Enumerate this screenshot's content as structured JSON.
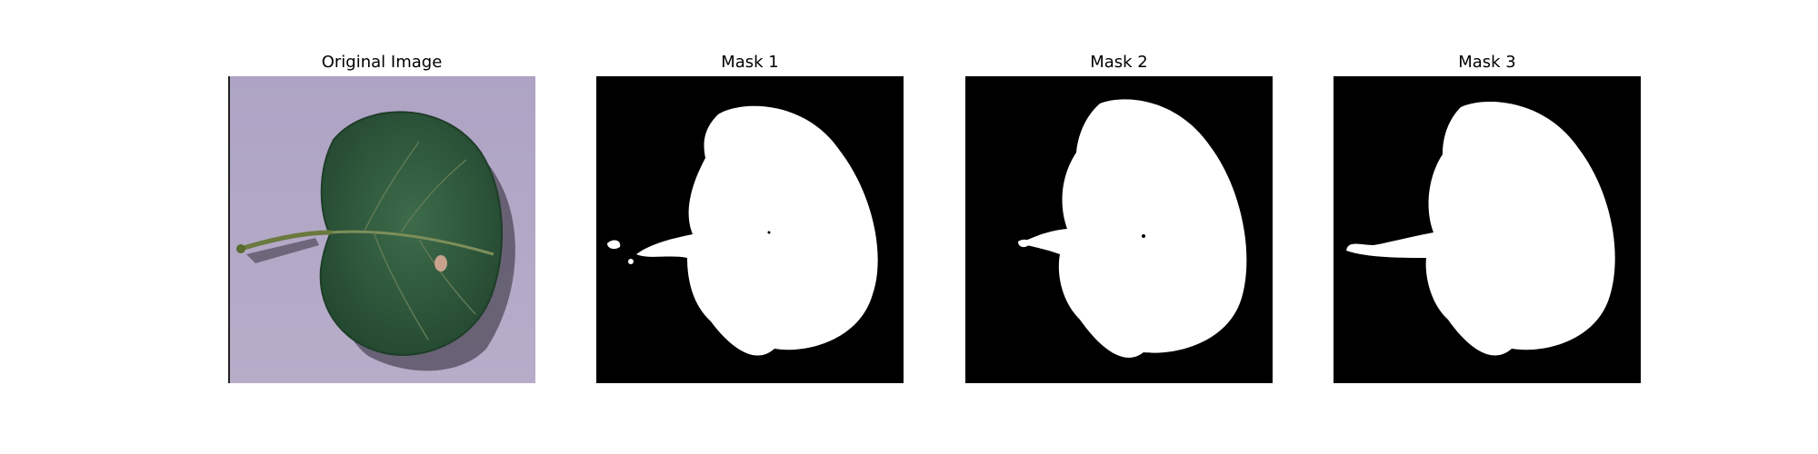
{
  "panels": [
    {
      "title": "Original Image"
    },
    {
      "title": "Mask 1"
    },
    {
      "title": "Mask 2"
    },
    {
      "title": "Mask 3"
    }
  ],
  "colors": {
    "background_surface": "#b3a9c7",
    "leaf": "#2f5a3c",
    "leaf_dark": "#1e3d28",
    "stem": "#6a7a3e",
    "mask_background": "#000000",
    "mask_foreground": "#ffffff"
  }
}
